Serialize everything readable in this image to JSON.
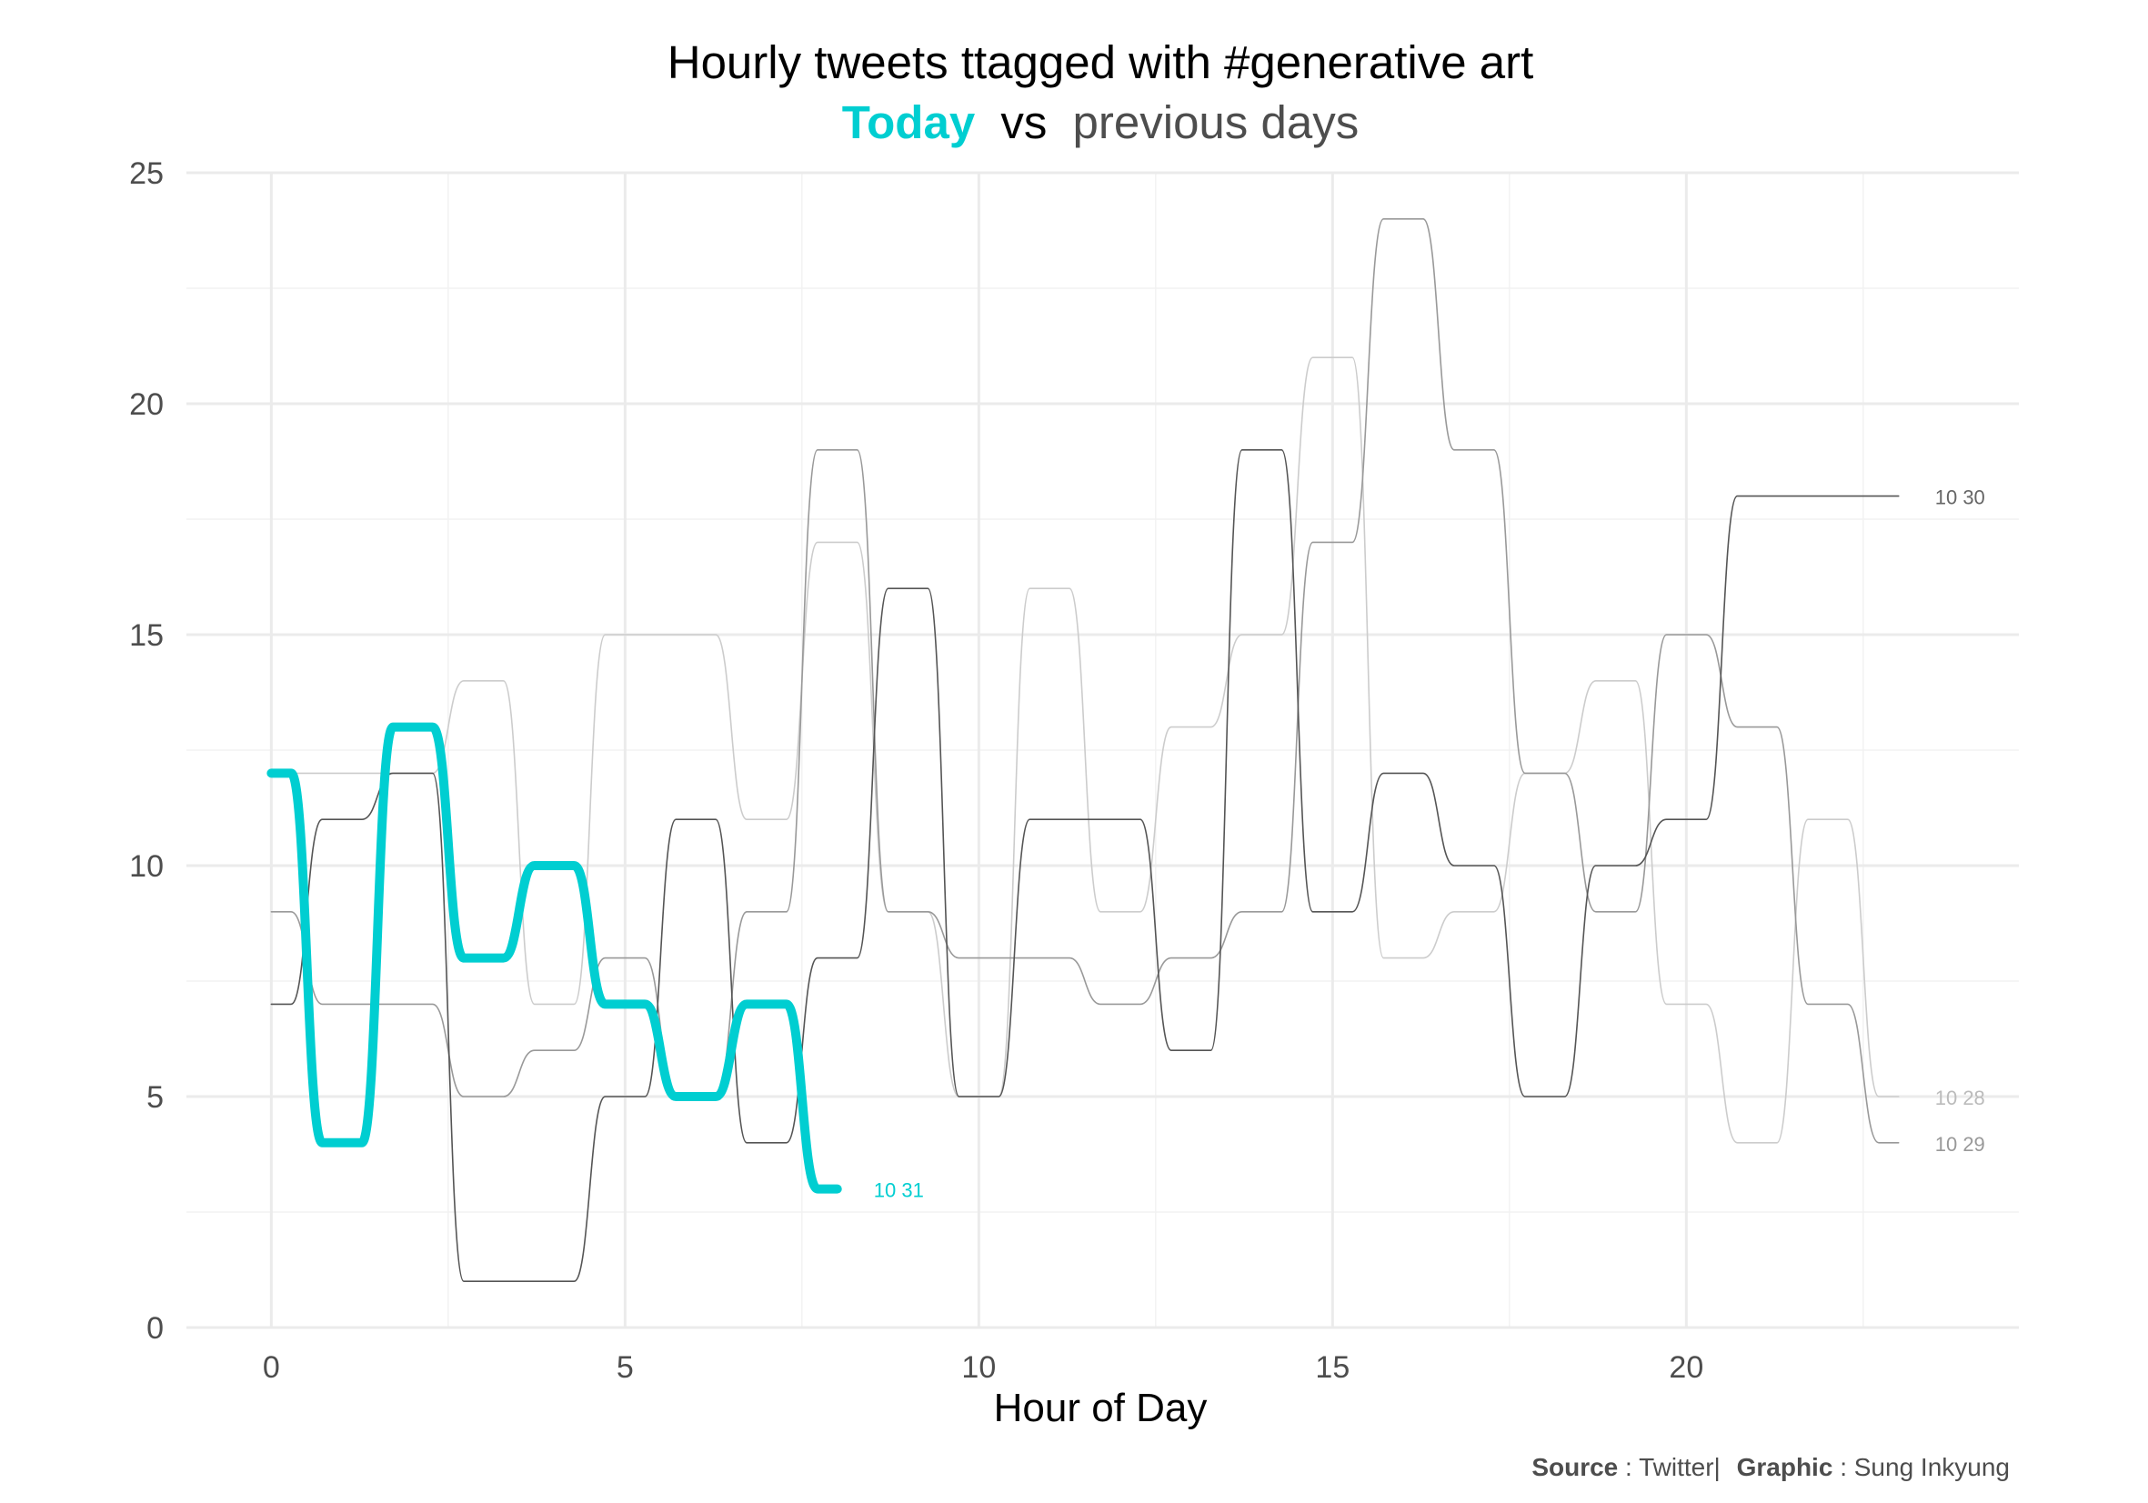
{
  "header": {
    "title": "Hourly tweets ttagged with #generative art",
    "subtitle_today": "Today",
    "subtitle_vs": "vs",
    "subtitle_previous": "previous days"
  },
  "caption": {
    "source_label": "Source",
    "source_value": ": Twitter|",
    "graphic_label": "Graphic",
    "graphic_value": ": Sung Inkyung"
  },
  "colors": {
    "today": "#00CED1",
    "title": "#000000",
    "subtitle_gray": "#4d4d4d",
    "grid": "#ebebeb",
    "axis_text": "#4d4d4d"
  },
  "chart_data": {
    "type": "line",
    "title": "Hourly tweets ttagged with #generative art",
    "xlabel": "Hour of Day",
    "ylabel": "",
    "xlim": [
      -1.2,
      24.7
    ],
    "ylim": [
      0,
      25
    ],
    "xticks": [
      0,
      5,
      10,
      15,
      20
    ],
    "yticks": [
      0,
      5,
      10,
      15,
      20,
      25
    ],
    "grid": true,
    "series": [
      {
        "name": "10 28",
        "color": "#cccccc",
        "width": 1.6,
        "x": [
          0,
          1,
          2,
          3,
          4,
          5,
          6,
          7,
          8,
          9,
          10,
          11,
          12,
          13,
          14,
          15,
          16,
          17,
          18,
          19,
          20,
          21,
          22,
          23
        ],
        "values": [
          12,
          12,
          12,
          14,
          7,
          15,
          15,
          11,
          17,
          9,
          5,
          16,
          9,
          13,
          15,
          21,
          8,
          9,
          12,
          14,
          7,
          4,
          11,
          5
        ]
      },
      {
        "name": "10 29",
        "color": "#999999",
        "width": 1.6,
        "x": [
          0,
          1,
          2,
          3,
          4,
          5,
          6,
          7,
          8,
          9,
          10,
          11,
          12,
          13,
          14,
          15,
          16,
          17,
          18,
          19,
          20,
          21,
          22,
          23
        ],
        "values": [
          9,
          7,
          7,
          5,
          6,
          8,
          5,
          9,
          19,
          9,
          8,
          8,
          7,
          8,
          9,
          17,
          24,
          19,
          12,
          9,
          15,
          13,
          7,
          4
        ]
      },
      {
        "name": "10 30",
        "color": "#555555",
        "width": 1.6,
        "x": [
          0,
          1,
          2,
          3,
          4,
          5,
          6,
          7,
          8,
          9,
          10,
          11,
          12,
          13,
          14,
          15,
          16,
          17,
          18,
          19,
          20,
          21,
          22,
          23
        ],
        "values": [
          7,
          11,
          12,
          1,
          1,
          5,
          11,
          4,
          8,
          16,
          5,
          11,
          11,
          6,
          19,
          9,
          12,
          10,
          5,
          10,
          11,
          18,
          18,
          18
        ]
      },
      {
        "name": "10 31",
        "color": "#00CED1",
        "width": 10,
        "x": [
          0,
          1,
          2,
          3,
          4,
          5,
          6,
          7,
          8
        ],
        "values": [
          12,
          4,
          13,
          8,
          10,
          7,
          5,
          7,
          3
        ]
      }
    ]
  }
}
